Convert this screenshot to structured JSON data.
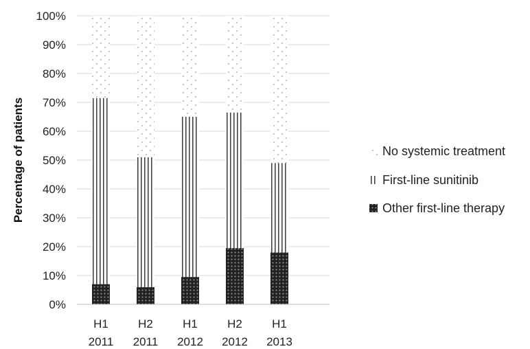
{
  "chart_data": {
    "type": "bar",
    "stacked": true,
    "normalized": true,
    "categories": [
      [
        "H1",
        "2011"
      ],
      [
        "H2",
        "2011"
      ],
      [
        "H1",
        "2012"
      ],
      [
        "H2",
        "2012"
      ],
      [
        "H1",
        "2013"
      ]
    ],
    "series": [
      {
        "name": "Other first-line therapy",
        "pattern": "crosshatch",
        "values": [
          7,
          6,
          9.5,
          19.5,
          18
        ]
      },
      {
        "name": "First-line sunitinib",
        "pattern": "vertical-lines",
        "values": [
          64.5,
          45,
          55.5,
          47,
          31
        ]
      },
      {
        "name": "No systemic treatment",
        "pattern": "dots",
        "values": [
          28.5,
          49,
          35,
          33.5,
          51
        ]
      }
    ],
    "ylabel": "Percentage of patients",
    "ylim": [
      0,
      100
    ],
    "yticks": [
      "0%",
      "10%",
      "20%",
      "30%",
      "40%",
      "50%",
      "60%",
      "70%",
      "80%",
      "90%",
      "100%"
    ],
    "grid": true,
    "legend_position": "right",
    "legend_order": [
      "No systemic treatment",
      "First-line sunitinib",
      "Other first-line therapy"
    ]
  }
}
